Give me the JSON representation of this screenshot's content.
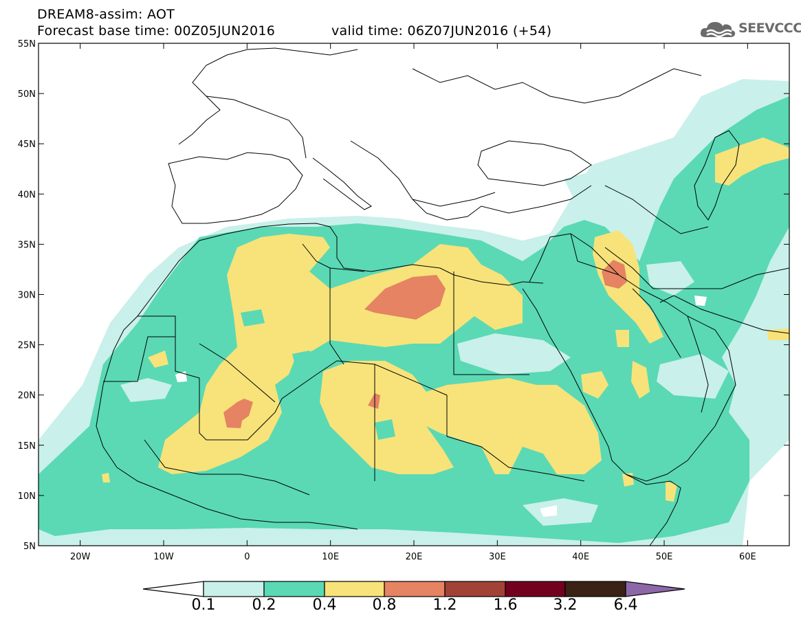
{
  "header": {
    "line1": "DREAM8-assim: AOT",
    "line2": "Forecast base time: 00Z05JUN2016",
    "line3": "valid time: 06Z07JUN2016 (+54)"
  },
  "logo": {
    "text": "SEEVCCC",
    "icon": "cloud-icon"
  },
  "map": {
    "lon_range": [
      -25,
      65
    ],
    "lat_range": [
      5,
      55
    ],
    "lat_ticks": [
      "5N",
      "10N",
      "15N",
      "20N",
      "25N",
      "30N",
      "35N",
      "40N",
      "45N",
      "50N",
      "55N"
    ],
    "lon_ticks": [
      "20W",
      "10W",
      "0",
      "10E",
      "20E",
      "30E",
      "40E",
      "50E",
      "60E"
    ]
  },
  "colorbar": {
    "labels": [
      "0.1",
      "0.2",
      "0.4",
      "0.8",
      "1.2",
      "1.6",
      "3.2",
      "6.4"
    ],
    "colors": {
      "0.1-0.2": "#c9f0ea",
      "0.2-0.4": "#5ad9b4",
      "0.4-0.8": "#f7e37a",
      "0.8-1.2": "#e58363",
      "1.2-1.6": "#a24236",
      "1.6-3.2": "#740020",
      "3.2-6.4": "#3a2314",
      ">6.4": "#8d68a8"
    }
  }
}
